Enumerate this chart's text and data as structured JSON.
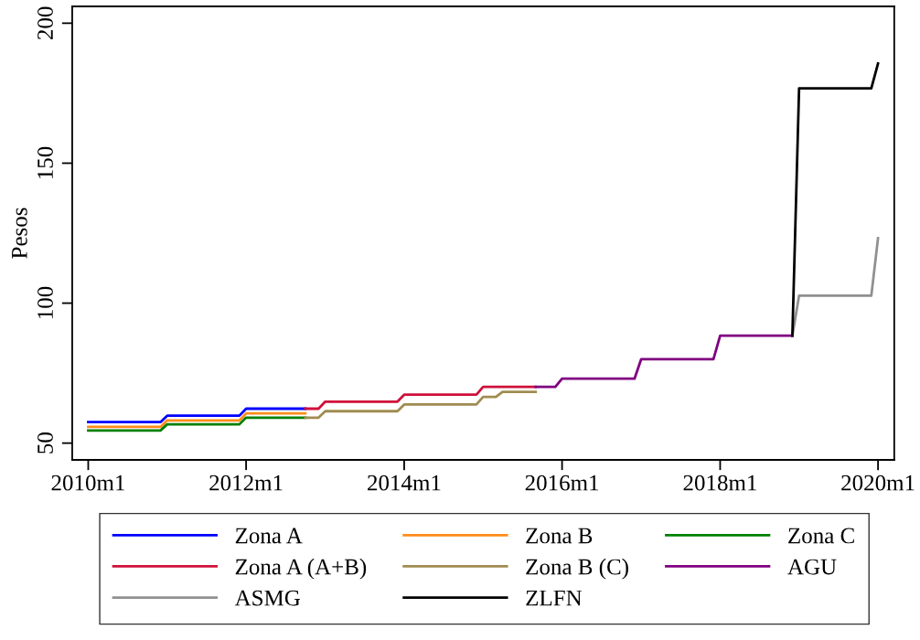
{
  "chart_data": {
    "type": "line",
    "ylabel": "Pesos",
    "xlim": [
      "2009-10-19",
      "2020-03-16"
    ],
    "ylim": [
      44,
      206
    ],
    "xticks": [
      {
        "value": "2010-01",
        "label": "2010m1"
      },
      {
        "value": "2012-01",
        "label": "2012m1"
      },
      {
        "value": "2014-01",
        "label": "2014m1"
      },
      {
        "value": "2016-01",
        "label": "2016m1"
      },
      {
        "value": "2018-01",
        "label": "2018m1"
      },
      {
        "value": "2020-01",
        "label": "2020m1"
      }
    ],
    "yticks": [
      50,
      100,
      150,
      200
    ],
    "grid": false,
    "legend": "bottom",
    "marker": "none",
    "line_style": "solid",
    "series": [
      {
        "name": "Zona A",
        "color": "#0000ff",
        "x": [
          "2010-01",
          "2010-12",
          "2011-01",
          "2011-12",
          "2012-01",
          "2012-10"
        ],
        "values": [
          57.5,
          57.5,
          59.8,
          59.8,
          62.3,
          62.3
        ]
      },
      {
        "name": "Zona B",
        "color": "#ff8c1a",
        "x": [
          "2010-01",
          "2010-12",
          "2011-01",
          "2011-12",
          "2012-01",
          "2012-10"
        ],
        "values": [
          55.8,
          55.8,
          58.1,
          58.1,
          60.6,
          60.6
        ]
      },
      {
        "name": "Zona C",
        "color": "#008000",
        "x": [
          "2010-01",
          "2010-12",
          "2011-01",
          "2011-12",
          "2012-01",
          "2012-10"
        ],
        "values": [
          54.5,
          54.5,
          56.7,
          56.7,
          59.1,
          59.1
        ]
      },
      {
        "name": "Zona A (A+B)",
        "color": "#d0103a",
        "x": [
          "2012-10",
          "2012-12",
          "2013-01",
          "2013-12",
          "2014-01",
          "2014-12",
          "2015-01",
          "2015-09"
        ],
        "values": [
          62.3,
          62.3,
          64.8,
          64.8,
          67.3,
          67.3,
          70.1,
          70.1
        ]
      },
      {
        "name": "Zona B (C)",
        "color": "#a08c50",
        "x": [
          "2012-10",
          "2012-12",
          "2013-01",
          "2013-12",
          "2014-01",
          "2014-12",
          "2015-01",
          "2015-03",
          "2015-04",
          "2015-09"
        ],
        "values": [
          59.1,
          59.1,
          61.4,
          61.4,
          63.8,
          63.8,
          66.5,
          66.5,
          68.3,
          68.3
        ]
      },
      {
        "name": "AGU",
        "color": "#800080",
        "x": [
          "2015-09",
          "2015-12",
          "2016-01",
          "2016-12",
          "2017-01",
          "2017-12",
          "2018-01",
          "2018-12"
        ],
        "values": [
          70.1,
          70.1,
          73.0,
          73.0,
          80.0,
          80.0,
          88.4,
          88.4
        ]
      },
      {
        "name": "ASMG",
        "color": "#909090",
        "x": [
          "2018-12",
          "2019-01",
          "2019-12",
          "2020-01"
        ],
        "values": [
          88.4,
          102.7,
          102.7,
          123.2
        ]
      },
      {
        "name": "ZLFN",
        "color": "#000000",
        "x": [
          "2018-12",
          "2019-01",
          "2019-12",
          "2020-01"
        ],
        "values": [
          88.4,
          176.7,
          176.7,
          185.6
        ]
      }
    ]
  }
}
